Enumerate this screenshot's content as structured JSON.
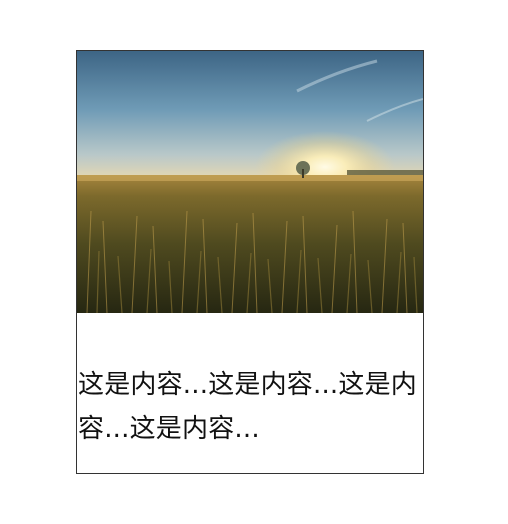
{
  "card": {
    "image": {
      "alt_name": "wheat-field-sunset-image"
    },
    "text": "这是内容...这是内容...这是内容...这是内容..."
  }
}
